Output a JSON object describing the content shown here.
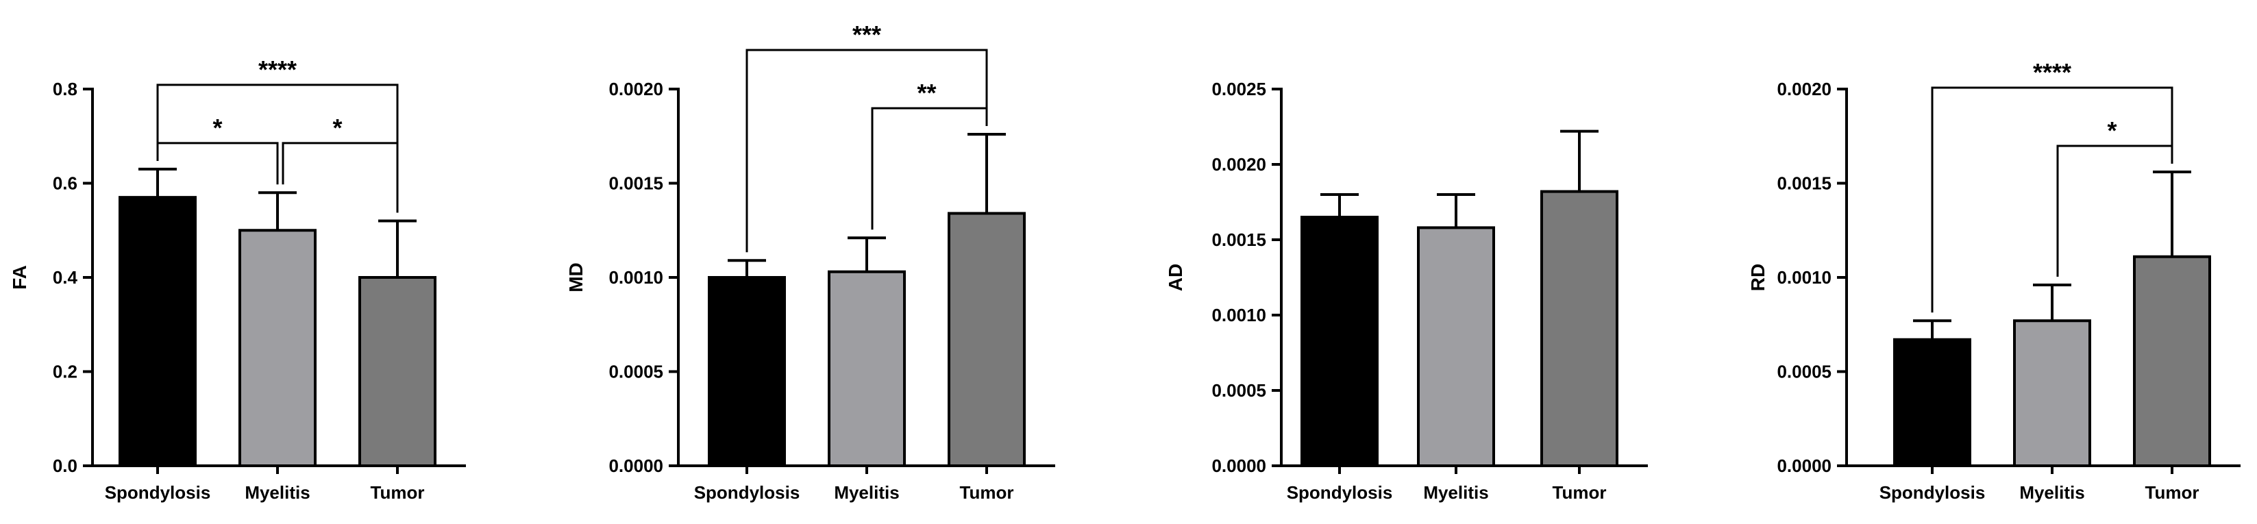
{
  "chart_data": [
    {
      "type": "bar",
      "ylabel": "FA",
      "xlabel": "",
      "title": "",
      "categories": [
        "Spondylosis",
        "Myelitis",
        "Tumor"
      ],
      "values": [
        0.57,
        0.5,
        0.4
      ],
      "errors": [
        0.06,
        0.08,
        0.12
      ],
      "ylim": [
        0,
        0.8
      ],
      "yticks": [
        0.0,
        0.2,
        0.4,
        0.6,
        0.8
      ],
      "ytick_labels": [
        "0.0",
        "0.2",
        "0.4",
        "0.6",
        "0.8"
      ],
      "colors": [
        "#000000",
        "#9e9ea2",
        "#7a7a7a"
      ],
      "significance": [
        {
          "from": 0,
          "to": 1,
          "label": "*"
        },
        {
          "from": 1,
          "to": 2,
          "label": "*"
        },
        {
          "from": 0,
          "to": 2,
          "label": "****"
        }
      ]
    },
    {
      "type": "bar",
      "ylabel": "MD",
      "xlabel": "",
      "title": "",
      "categories": [
        "Spondylosis",
        "Myelitis",
        "Tumor"
      ],
      "values": [
        0.001,
        0.00103,
        0.00134
      ],
      "errors": [
        9e-05,
        0.00018,
        0.00042
      ],
      "ylim": [
        0,
        0.002
      ],
      "yticks": [
        0,
        0.0005,
        0.001,
        0.0015,
        0.002
      ],
      "ytick_labels": [
        "0.0000",
        "0.0005",
        "0.0010",
        "0.0015",
        "0.0020"
      ],
      "colors": [
        "#000000",
        "#9e9ea2",
        "#7a7a7a"
      ],
      "significance": [
        {
          "from": 1,
          "to": 2,
          "label": "**"
        },
        {
          "from": 0,
          "to": 2,
          "label": "***"
        }
      ]
    },
    {
      "type": "bar",
      "ylabel": "AD",
      "xlabel": "",
      "title": "",
      "categories": [
        "Spondylosis",
        "Myelitis",
        "Tumor"
      ],
      "values": [
        0.00165,
        0.00158,
        0.00182
      ],
      "errors": [
        0.00015,
        0.00022,
        0.0004
      ],
      "ylim": [
        0,
        0.0025
      ],
      "yticks": [
        0,
        0.0005,
        0.001,
        0.0015,
        0.002,
        0.0025
      ],
      "ytick_labels": [
        "0.0000",
        "0.0005",
        "0.0010",
        "0.0015",
        "0.0020",
        "0.0025"
      ],
      "colors": [
        "#000000",
        "#9e9ea2",
        "#7a7a7a"
      ],
      "significance": []
    },
    {
      "type": "bar",
      "ylabel": "RD",
      "xlabel": "",
      "title": "",
      "categories": [
        "Spondylosis",
        "Myelitis",
        "Tumor"
      ],
      "values": [
        0.00067,
        0.00077,
        0.00111
      ],
      "errors": [
        0.0001,
        0.00019,
        0.00045
      ],
      "ylim": [
        0,
        0.002
      ],
      "yticks": [
        0,
        0.0005,
        0.001,
        0.0015,
        0.002
      ],
      "ytick_labels": [
        "0.0000",
        "0.0005",
        "0.0010",
        "0.0015",
        "0.0020"
      ],
      "colors": [
        "#000000",
        "#9e9ea2",
        "#7a7a7a"
      ],
      "significance": [
        {
          "from": 1,
          "to": 2,
          "label": "*"
        },
        {
          "from": 0,
          "to": 2,
          "label": "****"
        }
      ]
    }
  ]
}
